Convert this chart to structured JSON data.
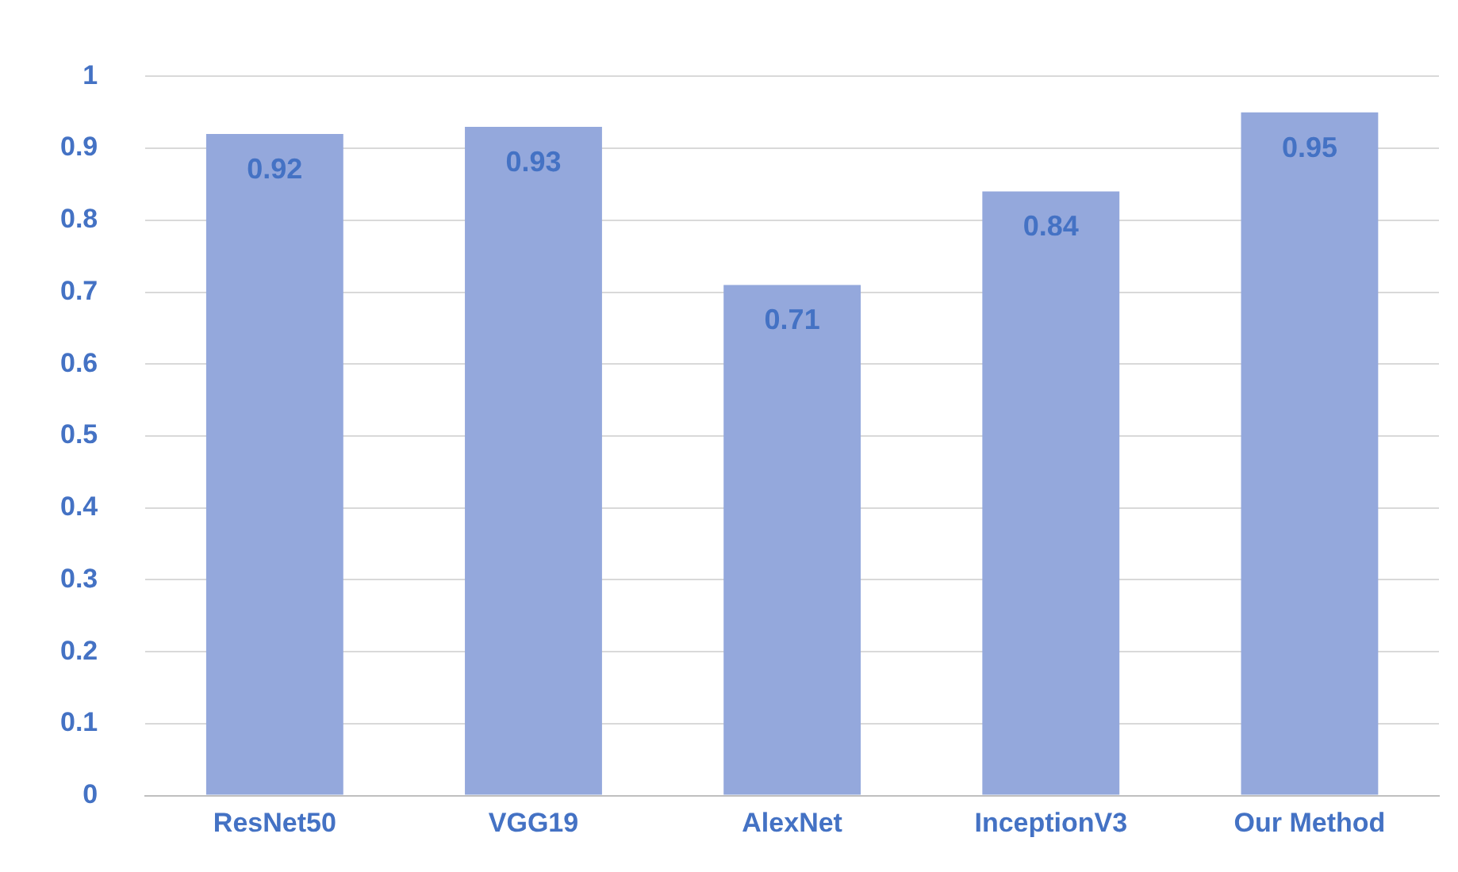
{
  "chart_data": {
    "type": "bar",
    "categories": [
      "ResNet50",
      "VGG19",
      "AlexNet",
      "InceptionV3",
      "Our Method"
    ],
    "values": [
      0.92,
      0.93,
      0.71,
      0.84,
      0.95
    ],
    "color": "#94a8dc",
    "ylim": [
      0,
      1
    ],
    "yticks": [
      0,
      0.1,
      0.2,
      0.3,
      0.4,
      0.5,
      0.6,
      0.7,
      0.8,
      0.9,
      1
    ],
    "grid": "y",
    "data_labels": true,
    "legend": false
  }
}
